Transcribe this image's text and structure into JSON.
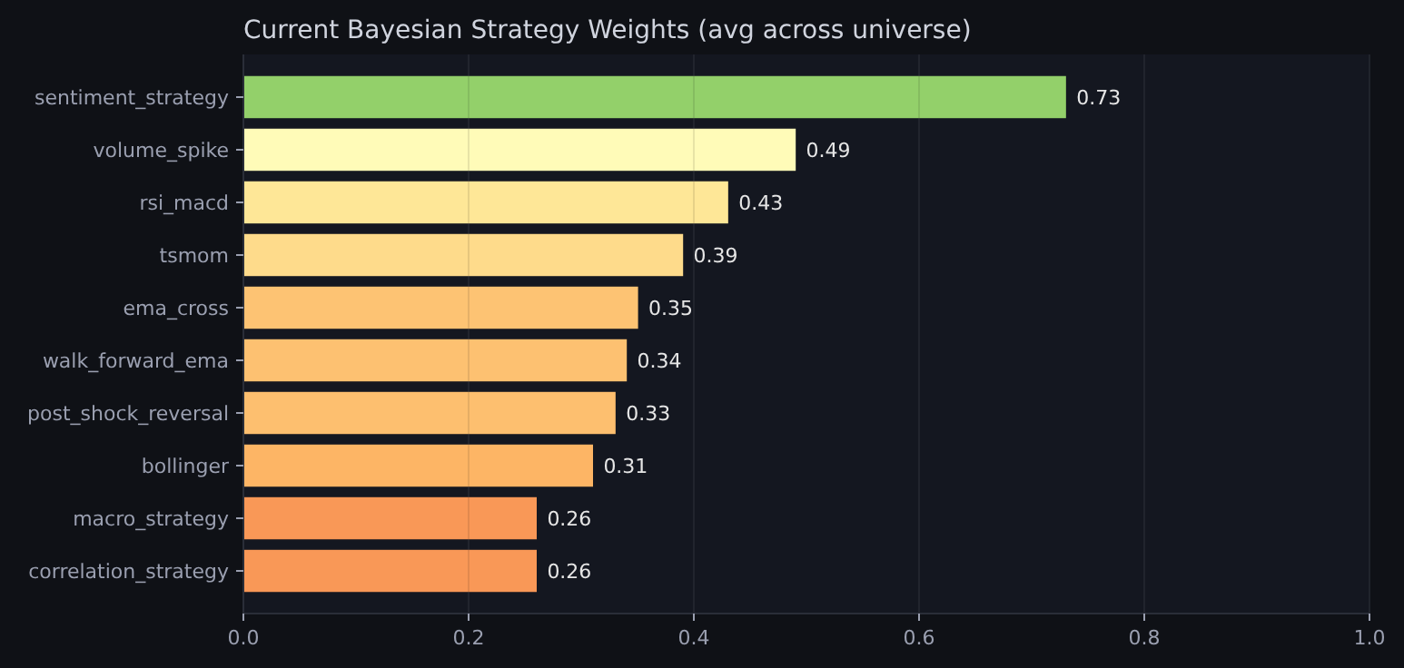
{
  "chart_data": {
    "type": "bar",
    "orientation": "horizontal",
    "title": "Current Bayesian Strategy Weights (avg across universe)",
    "categories": [
      "sentiment_strategy",
      "volume_spike",
      "rsi_macd",
      "tsmom",
      "ema_cross",
      "walk_forward_ema",
      "post_shock_reversal",
      "bollinger",
      "macro_strategy",
      "correlation_strategy"
    ],
    "values": [
      0.73,
      0.49,
      0.43,
      0.39,
      0.35,
      0.34,
      0.33,
      0.31,
      0.26,
      0.26
    ],
    "colors": [
      "#93d06a",
      "#fffbb8",
      "#fee797",
      "#fedb8b",
      "#fdc373",
      "#fdc171",
      "#fdbf6f",
      "#fdb565",
      "#f99857",
      "#f99857"
    ],
    "xlim": [
      0,
      1
    ],
    "xticks": [
      {
        "value": 0,
        "label": "0.0"
      },
      {
        "value": 0.2,
        "label": "0.2"
      },
      {
        "value": 0.4,
        "label": "0.4"
      },
      {
        "value": 0.6,
        "label": "0.6"
      },
      {
        "value": 0.8,
        "label": "0.8"
      },
      {
        "value": 1,
        "label": "1.0"
      }
    ],
    "grid": "x",
    "data_labels": true
  }
}
